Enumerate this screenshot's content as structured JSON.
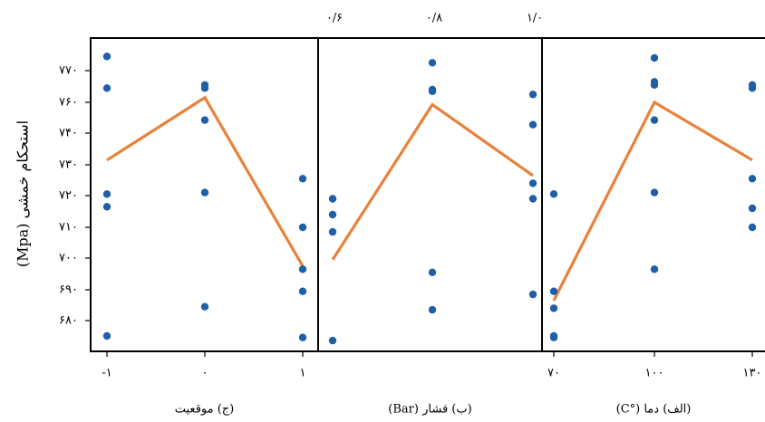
{
  "chart_data": {
    "type": "line",
    "ylabel": "استحکام خمشی (Mpa)",
    "y_ticks": [
      "۶۸۰",
      "۶۹۰",
      "۷۰۰",
      "۷۱۰",
      "۷۲۰",
      "۷۳۰",
      "۷۴۰",
      "۷۶۰",
      "۷۷۰"
    ],
    "line_color": "#e8823a",
    "point_color": "#1f5fa8",
    "panels": [
      {
        "key": "position",
        "xlabel": "(ج) موقعیت",
        "tick_labels": [
          "-۱",
          "۰",
          "۱"
        ],
        "mean_line": [
          731.5,
          761.5,
          697.5
        ],
        "points": [
          {
            "x": 0,
            "y": 774.5
          },
          {
            "x": 0,
            "y": 764.5
          },
          {
            "x": 0,
            "y": 720.5
          },
          {
            "x": 0,
            "y": 716.5
          },
          {
            "x": 0,
            "y": 675.0
          },
          {
            "x": 1,
            "y": 765.5
          },
          {
            "x": 1,
            "y": 764.5
          },
          {
            "x": 1,
            "y": 748.5
          },
          {
            "x": 1,
            "y": 721.0
          },
          {
            "x": 1,
            "y": 684.5
          },
          {
            "x": 2,
            "y": 725.5
          },
          {
            "x": 2,
            "y": 710.0
          },
          {
            "x": 2,
            "y": 696.5
          },
          {
            "x": 2,
            "y": 689.5
          },
          {
            "x": 2,
            "y": 674.5
          }
        ]
      },
      {
        "key": "pressure",
        "xlabel": "(ب) فشار (Bar)",
        "tick_labels": [
          "۰/۶",
          "۰/۸",
          "۱/۰"
        ],
        "mean_line": [
          699.5,
          758.5,
          726.5
        ],
        "points": [
          {
            "x": 0,
            "y": 719.0
          },
          {
            "x": 0,
            "y": 714.0
          },
          {
            "x": 0,
            "y": 708.5
          },
          {
            "x": 0,
            "y": 673.5
          },
          {
            "x": 1,
            "y": 772.5
          },
          {
            "x": 1,
            "y": 764.0
          },
          {
            "x": 1,
            "y": 763.5
          },
          {
            "x": 1,
            "y": 695.5
          },
          {
            "x": 1,
            "y": 683.5
          },
          {
            "x": 2,
            "y": 762.5
          },
          {
            "x": 2,
            "y": 745.5
          },
          {
            "x": 2,
            "y": 724.0
          },
          {
            "x": 2,
            "y": 719.0
          },
          {
            "x": 2,
            "y": 688.5
          }
        ]
      },
      {
        "key": "temperature",
        "xlabel": "(الف) دما (°C)",
        "tick_labels": [
          "۷۰",
          "۱۰۰",
          "۱۳۰"
        ],
        "mean_line": [
          686.5,
          760.0,
          731.5
        ],
        "points": [
          {
            "x": 0,
            "y": 720.5
          },
          {
            "x": 0,
            "y": 689.5
          },
          {
            "x": 0,
            "y": 684.0
          },
          {
            "x": 0,
            "y": 675.0
          },
          {
            "x": 0,
            "y": 674.5
          },
          {
            "x": 1,
            "y": 774.0
          },
          {
            "x": 1,
            "y": 766.5
          },
          {
            "x": 1,
            "y": 765.5
          },
          {
            "x": 1,
            "y": 748.5
          },
          {
            "x": 1,
            "y": 721.0
          },
          {
            "x": 1,
            "y": 696.5
          },
          {
            "x": 2,
            "y": 765.5
          },
          {
            "x": 2,
            "y": 764.5
          },
          {
            "x": 2,
            "y": 725.5
          },
          {
            "x": 2,
            "y": 716.0
          },
          {
            "x": 2,
            "y": 710.0
          }
        ]
      }
    ]
  }
}
